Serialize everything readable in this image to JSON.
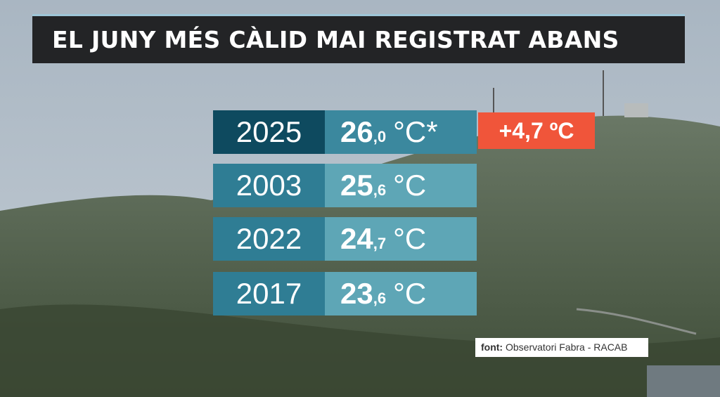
{
  "header": {
    "title": "EL JUNY MÉS CÀLID MAI REGISTRAT ABANS"
  },
  "table": {
    "rows": [
      {
        "year": "2025",
        "integer": "26",
        "decimal": ",0",
        "unit": "°C*"
      },
      {
        "year": "2003",
        "integer": "25",
        "decimal": ",6",
        "unit": "°C"
      },
      {
        "year": "2022",
        "integer": "24",
        "decimal": ",7",
        "unit": "°C"
      },
      {
        "year": "2017",
        "integer": "23",
        "decimal": ",6",
        "unit": "°C"
      }
    ]
  },
  "badge": "+4,7 ºC",
  "source": {
    "label": "font:",
    "text": "Observatori Fabra - RACAB"
  }
}
